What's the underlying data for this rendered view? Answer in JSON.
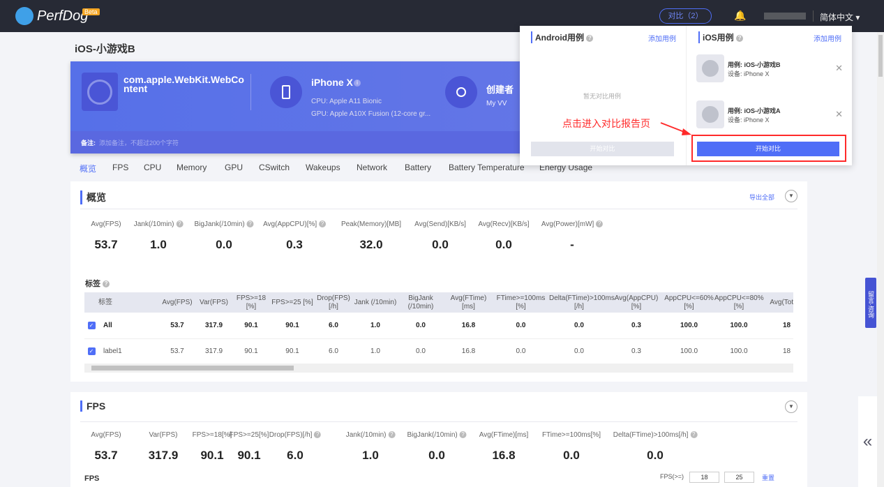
{
  "header": {
    "brand": "PerfDog",
    "badge": "Beta",
    "compare_button": "对比（2）",
    "language": "简体中文 ▾"
  },
  "page": {
    "title": "iOS-小游戏B"
  },
  "card": {
    "app_name": "com.apple.WebKit.WebContent",
    "device": "iPhone X",
    "cpu": "CPU: Apple A11 Bionic",
    "gpu": "GPU: Apple A10X Fusion (12-core gr...",
    "creator_label": "创建者",
    "creator": "My VV",
    "note_label": "备注:",
    "note_placeholder": "添加备注，不超过200个字符"
  },
  "tabs": [
    "概览",
    "FPS",
    "CPU",
    "Memory",
    "GPU",
    "CSwitch",
    "Wakeups",
    "Network",
    "Battery",
    "Battery Temperature",
    "Energy Usage"
  ],
  "overview": {
    "title": "概览",
    "export": "导出全部",
    "stats": [
      {
        "label": "Avg(FPS)",
        "value": "53.7"
      },
      {
        "label": "Jank(/10min)",
        "value": "1.0",
        "help": true
      },
      {
        "label": "BigJank(/10min)",
        "value": "0.0",
        "help": true
      },
      {
        "label": "Avg(AppCPU)[%]",
        "value": "0.3",
        "help": true
      },
      {
        "label": "Peak(Memory)[MB]",
        "value": "32.0"
      },
      {
        "label": "Avg(Send)[KB/s]",
        "value": "0.0"
      },
      {
        "label": "Avg(Recv)[KB/s]",
        "value": "0.0"
      },
      {
        "label": "Avg(Power)[mW]",
        "value": "-",
        "help": true
      }
    ],
    "tags_title": "标签",
    "table": {
      "headers": [
        "标签",
        "Avg(FPS)",
        "Var(FPS)",
        "FPS>=18 [%]",
        "FPS>=25 [%]",
        "Drop(FPS) [/h]",
        "Jank (/10min)",
        "BigJank (/10min)",
        "Avg(FTime) [ms]",
        "FTime>=100ms [%]",
        "Delta(FTime)>100ms [/h]",
        "Avg(AppCPU) [%]",
        "AppCPU<=60% [%]",
        "AppCPU<=80% [%]",
        "Avg(Tot [%"
      ],
      "rows": [
        [
          "All",
          "53.7",
          "317.9",
          "90.1",
          "90.1",
          "6.0",
          "1.0",
          "0.0",
          "16.8",
          "0.0",
          "0.0",
          "0.3",
          "100.0",
          "100.0",
          "18"
        ],
        [
          "label1",
          "53.7",
          "317.9",
          "90.1",
          "90.1",
          "6.0",
          "1.0",
          "0.0",
          "16.8",
          "0.0",
          "0.0",
          "0.3",
          "100.0",
          "100.0",
          "18"
        ]
      ]
    }
  },
  "fps": {
    "title": "FPS",
    "stats": [
      {
        "label": "Avg(FPS)",
        "value": "53.7"
      },
      {
        "label": "Var(FPS)",
        "value": "317.9"
      },
      {
        "label": "FPS>=18[%]",
        "value": "90.1"
      },
      {
        "label": "FPS>=25[%]",
        "value": "90.1"
      },
      {
        "label": "Drop(FPS)[/h]",
        "value": "6.0",
        "help": true
      },
      {
        "label": "Jank(/10min)",
        "value": "1.0",
        "help": true
      },
      {
        "label": "BigJank(/10min)",
        "value": "0.0",
        "help": true
      },
      {
        "label": "Avg(FTime)[ms]",
        "value": "16.8"
      },
      {
        "label": "FTime>=100ms[%]",
        "value": "0.0"
      },
      {
        "label": "Delta(FTime)>100ms[/h]",
        "value": "0.0",
        "help": true
      }
    ],
    "chart_label": "FPS",
    "threshold_label": "FPS(>=)",
    "threshold1": "18",
    "threshold2": "25",
    "reset": "重置"
  },
  "popup": {
    "android_title": "Android用例",
    "ios_title": "iOS用例",
    "add": "添加用例",
    "empty": "暂无对比用例",
    "start": "开始对比",
    "cases": [
      {
        "name": "用例: iOS-小游戏B",
        "device": "设备: iPhone X"
      },
      {
        "name": "用例: iOS-小游戏A",
        "device": "设备: iPhone X"
      }
    ],
    "annotation": "点击进入对比报告页"
  },
  "side": {
    "feedback": "留言·咨询",
    "collapse": "«"
  },
  "colors": {
    "accent": "#4f6ef7",
    "header": "#272a35",
    "annotation": "#ff2a2a"
  }
}
